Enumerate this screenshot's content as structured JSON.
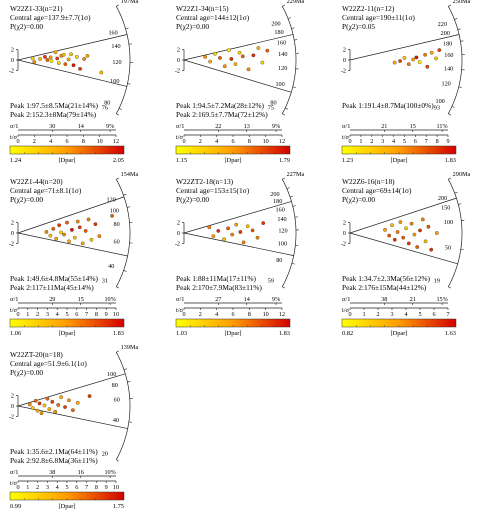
{
  "colorbar_label": "[Dpar]",
  "axis_labels": {
    "precision": "σ/1",
    "tsigma": "t/σ"
  },
  "panels": [
    {
      "title": "W22Z1-33(n=21)",
      "central_age": "Central age=137.9±7.7(1σ)",
      "p_chi2": "P(χ2)=0.00",
      "peaks": [
        "Peak 1:97.5±8.5Ma(21±14%)",
        "Peak 2:152.3±8Ma(79±14%)"
      ],
      "arc_max_label": "197Ma",
      "arc_ticks": [
        {
          "age": 197,
          "label": ""
        },
        {
          "age": 160,
          "label": "160"
        },
        {
          "age": 140,
          "label": "140"
        },
        {
          "age": 120,
          "label": "120"
        },
        {
          "age": 100,
          "label": "100"
        },
        {
          "age": 80,
          "label": "80"
        },
        {
          "age": 76,
          "label": "76"
        }
      ],
      "arc_min": 76,
      "peak_ages": [
        97.5,
        152.3
      ],
      "precision_ticks": [
        "30",
        "14",
        "9%"
      ],
      "x_ticks": [
        "0",
        "2",
        "4",
        "6",
        "8",
        "10",
        "12"
      ],
      "x_max": 12,
      "y_ticks": [
        "2",
        "0",
        "-2"
      ],
      "dpar": {
        "min": "1.24",
        "max": "2.05",
        "vmin": 1.24,
        "vmax": 2.05
      },
      "points": [
        [
          1.8,
          0.3,
          1.4
        ],
        [
          2.0,
          -0.4,
          1.7
        ],
        [
          2.7,
          0.2,
          1.5
        ],
        [
          3.3,
          0.6,
          1.9
        ],
        [
          3.6,
          0.0,
          1.8
        ],
        [
          4.0,
          0.5,
          1.6
        ],
        [
          4.1,
          -0.2,
          1.3
        ],
        [
          4.6,
          1.5,
          1.6
        ],
        [
          4.8,
          0.3,
          1.9
        ],
        [
          5.0,
          -0.6,
          1.4
        ],
        [
          5.3,
          0.8,
          1.7
        ],
        [
          5.6,
          1.0,
          1.5
        ],
        [
          5.8,
          -0.8,
          1.8
        ],
        [
          6.2,
          0.1,
          1.6
        ],
        [
          6.5,
          1.1,
          1.5
        ],
        [
          6.8,
          -1.0,
          2.0
        ],
        [
          7.2,
          0.6,
          1.4
        ],
        [
          7.6,
          -1.7,
          1.9
        ],
        [
          8.1,
          0.2,
          1.7
        ],
        [
          8.5,
          0.8,
          1.6
        ],
        [
          10.2,
          -2.4,
          1.5
        ]
      ]
    },
    {
      "title": "W22Z1-34(n=15)",
      "central_age": "Central age=144±12(1σ)",
      "p_chi2": "P(χ2)=0.00",
      "peaks": [
        "Peak 1:94.5±7.2Ma(28±12%)",
        "Peak 2:169.5±7.7Ma(72±12%)"
      ],
      "arc_max_label": "229Ma",
      "arc_ticks": [
        {
          "age": 229,
          "label": ""
        },
        {
          "age": 200,
          "label": "200"
        },
        {
          "age": 180,
          "label": "180"
        },
        {
          "age": 160,
          "label": "160"
        },
        {
          "age": 140,
          "label": "140"
        },
        {
          "age": 120,
          "label": "120"
        },
        {
          "age": 100,
          "label": "100"
        },
        {
          "age": 80,
          "label": "80"
        },
        {
          "age": 75,
          "label": "75"
        }
      ],
      "arc_min": 75,
      "peak_ages": [
        94.5,
        169.5
      ],
      "precision_ticks": [
        "22",
        "13",
        "9%"
      ],
      "x_ticks": [
        "0",
        "2",
        "4",
        "6",
        "8",
        "10",
        "12"
      ],
      "x_max": 12,
      "y_ticks": [
        "2",
        "0",
        "-2"
      ],
      "dpar": {
        "min": "1.15",
        "max": "1.79",
        "vmin": 1.15,
        "vmax": 1.79
      },
      "points": [
        [
          2.6,
          0.6,
          1.5
        ],
        [
          3.2,
          -0.3,
          1.4
        ],
        [
          3.8,
          1.2,
          1.3
        ],
        [
          4.4,
          0.4,
          1.6
        ],
        [
          5.0,
          -1.2,
          1.5
        ],
        [
          5.5,
          1.9,
          1.2
        ],
        [
          5.8,
          0.2,
          1.7
        ],
        [
          6.3,
          -0.8,
          1.4
        ],
        [
          6.8,
          1.4,
          1.3
        ],
        [
          7.2,
          0.7,
          1.6
        ],
        [
          7.9,
          -1.8,
          1.5
        ],
        [
          8.5,
          0.9,
          1.7
        ],
        [
          9.1,
          2.3,
          1.4
        ],
        [
          9.6,
          -0.5,
          1.3
        ],
        [
          10.2,
          1.8,
          1.6
        ]
      ]
    },
    {
      "title": "W22Z2-11(n=12)",
      "central_age": "Central age=190±11(1σ)",
      "p_chi2": "P(χ2)=0.05",
      "peaks": [
        "Peak 1:191.4±8.7Ma(100±0%)"
      ],
      "arc_max_label": "250Ma",
      "arc_ticks": [
        {
          "age": 250,
          "label": ""
        },
        {
          "age": 220,
          "label": "220"
        },
        {
          "age": 200,
          "label": "200"
        },
        {
          "age": 180,
          "label": "180"
        },
        {
          "age": 160,
          "label": "160"
        },
        {
          "age": 140,
          "label": "140"
        },
        {
          "age": 120,
          "label": "120"
        },
        {
          "age": 100,
          "label": "100"
        },
        {
          "age": 93,
          "label": "93"
        }
      ],
      "arc_min": 93,
      "peak_ages": [
        191.4
      ],
      "precision_ticks": [
        "21",
        "15",
        "11%"
      ],
      "x_ticks": [
        "0",
        "1",
        "2",
        "3",
        "4",
        "5",
        "6",
        "7",
        "8",
        "9"
      ],
      "x_max": 9,
      "y_ticks": [
        "2",
        "0",
        "-2"
      ],
      "dpar": {
        "min": "1.23",
        "max": "1.83",
        "vmin": 1.23,
        "vmax": 1.83
      },
      "points": [
        [
          4.1,
          -0.5,
          1.5
        ],
        [
          4.6,
          -0.2,
          1.7
        ],
        [
          5.0,
          0.4,
          1.4
        ],
        [
          5.4,
          -0.8,
          1.6
        ],
        [
          5.8,
          0.1,
          1.5
        ],
        [
          6.1,
          0.5,
          1.8
        ],
        [
          6.4,
          -0.4,
          1.3
        ],
        [
          6.9,
          1.0,
          1.6
        ],
        [
          7.1,
          -1.3,
          1.7
        ],
        [
          7.5,
          1.4,
          1.5
        ],
        [
          7.9,
          0.3,
          1.4
        ],
        [
          8.2,
          1.9,
          1.7
        ]
      ]
    },
    {
      "title": "W22Z1-44(n=20)",
      "central_age": "Central age=71±8.1(1σ)",
      "p_chi2": "P(χ2)=0.00",
      "peaks": [
        "Peak 1:49.6±4.8Ma(55±14%)",
        "Peak 2:117±11Ma(45±14%)"
      ],
      "arc_max_label": "154Ma",
      "arc_ticks": [
        {
          "age": 154,
          "label": ""
        },
        {
          "age": 120,
          "label": "120"
        },
        {
          "age": 100,
          "label": "100"
        },
        {
          "age": 80,
          "label": "80"
        },
        {
          "age": 60,
          "label": "60"
        },
        {
          "age": 40,
          "label": "40"
        },
        {
          "age": 31,
          "label": "31"
        }
      ],
      "arc_min": 31,
      "peak_ages": [
        49.6,
        117
      ],
      "precision_ticks": [
        "29",
        "15",
        "10%"
      ],
      "x_ticks": [
        "0",
        "1",
        "2",
        "3",
        "4",
        "5",
        "6",
        "7",
        "8",
        "9",
        "10"
      ],
      "x_max": 10,
      "y_ticks": [
        "2",
        "0",
        "-2"
      ],
      "dpar": {
        "min": "1.06",
        "max": "1.83",
        "vmin": 1.06,
        "vmax": 1.83
      },
      "points": [
        [
          2.9,
          0.2,
          1.5
        ],
        [
          3.3,
          -0.5,
          1.3
        ],
        [
          3.6,
          0.8,
          1.6
        ],
        [
          3.9,
          -1.1,
          1.4
        ],
        [
          4.2,
          1.5,
          1.7
        ],
        [
          4.4,
          0.1,
          1.2
        ],
        [
          4.7,
          -0.3,
          1.5
        ],
        [
          5.0,
          2.0,
          1.6
        ],
        [
          5.2,
          -1.6,
          1.4
        ],
        [
          5.5,
          0.6,
          1.8
        ],
        [
          5.8,
          -0.9,
          1.3
        ],
        [
          6.1,
          2.2,
          1.5
        ],
        [
          6.3,
          1.1,
          1.7
        ],
        [
          6.6,
          -2.0,
          1.4
        ],
        [
          6.9,
          0.4,
          1.6
        ],
        [
          7.2,
          2.6,
          1.5
        ],
        [
          7.5,
          -1.3,
          1.3
        ],
        [
          7.9,
          1.7,
          1.7
        ],
        [
          8.3,
          -0.6,
          1.5
        ],
        [
          9.6,
          3.3,
          1.6
        ]
      ]
    },
    {
      "title": "W22ZT2-18(n=13)",
      "central_age": "Central age=153±15(1σ)",
      "p_chi2": "P(χ2)=0.00",
      "peaks": [
        "Peak 1:88±11Ma(17±11%)",
        "Peak 2:170±7.9Ma(83±11%)"
      ],
      "arc_max_label": "227Ma",
      "arc_ticks": [
        {
          "age": 227,
          "label": ""
        },
        {
          "age": 200,
          "label": "200"
        },
        {
          "age": 180,
          "label": "180"
        },
        {
          "age": 160,
          "label": "160"
        },
        {
          "age": 140,
          "label": "140"
        },
        {
          "age": 120,
          "label": "120"
        },
        {
          "age": 100,
          "label": "100"
        },
        {
          "age": 80,
          "label": "80"
        },
        {
          "age": 59,
          "label": "59"
        }
      ],
      "arc_min": 59,
      "peak_ages": [
        88,
        170
      ],
      "precision_ticks": [
        "27",
        "14",
        "9%"
      ],
      "x_ticks": [
        "0",
        "2",
        "4",
        "6",
        "8",
        "10",
        "12"
      ],
      "x_max": 12,
      "y_ticks": [
        "2",
        "0",
        "-2"
      ],
      "dpar": {
        "min": "1.03",
        "max": "1.83",
        "vmin": 1.03,
        "vmax": 1.83
      },
      "points": [
        [
          3.1,
          1.1,
          1.5
        ],
        [
          3.6,
          -0.6,
          1.4
        ],
        [
          4.2,
          0.4,
          1.7
        ],
        [
          4.9,
          -1.2,
          1.3
        ],
        [
          5.4,
          0.9,
          1.6
        ],
        [
          5.9,
          -0.3,
          1.5
        ],
        [
          6.4,
          1.6,
          1.4
        ],
        [
          6.9,
          0.2,
          1.7
        ],
        [
          7.3,
          -1.8,
          1.5
        ],
        [
          7.8,
          1.3,
          1.3
        ],
        [
          8.4,
          0.5,
          1.6
        ],
        [
          9.0,
          -0.9,
          1.5
        ],
        [
          9.7,
          1.9,
          1.7
        ]
      ]
    },
    {
      "title": "W22Z6-16(n=18)",
      "central_age": "Central age=69±14(1σ)",
      "p_chi2": "P(χ2)=0.00",
      "peaks": [
        "Peak 1:34.7±2.3Ma(56±12%)",
        "Peak 2:176±15Ma(44±12%)"
      ],
      "arc_max_label": "290Ma",
      "arc_ticks": [
        {
          "age": 290,
          "label": ""
        },
        {
          "age": 200,
          "label": "200"
        },
        {
          "age": 150,
          "label": "150"
        },
        {
          "age": 100,
          "label": "100"
        },
        {
          "age": 50,
          "label": "50"
        },
        {
          "age": 19,
          "label": "19"
        }
      ],
      "arc_min": 19,
      "peak_ages": [
        34.7,
        176
      ],
      "precision_ticks": [
        "38",
        "21",
        "15%"
      ],
      "x_ticks": [
        "0",
        "1",
        "2",
        "3",
        "4",
        "5",
        "6",
        "7"
      ],
      "x_max": 7,
      "y_ticks": [
        "2",
        "0",
        "-2"
      ],
      "dpar": {
        "min": "0.82",
        "max": "1.63",
        "vmin": 0.82,
        "vmax": 1.63
      },
      "points": [
        [
          2.5,
          0.6,
          1.2
        ],
        [
          2.8,
          -0.5,
          1.4
        ],
        [
          3.0,
          1.5,
          1.1
        ],
        [
          3.2,
          -1.3,
          1.5
        ],
        [
          3.4,
          0.2,
          1.3
        ],
        [
          3.6,
          2.1,
          1.2
        ],
        [
          3.8,
          -0.9,
          1.4
        ],
        [
          4.0,
          0.9,
          1.0
        ],
        [
          4.2,
          -2.0,
          1.5
        ],
        [
          4.4,
          1.8,
          1.3
        ],
        [
          4.6,
          -0.3,
          1.2
        ],
        [
          4.8,
          -2.7,
          1.4
        ],
        [
          5.0,
          0.5,
          1.5
        ],
        [
          5.2,
          2.6,
          1.3
        ],
        [
          5.4,
          -1.6,
          1.1
        ],
        [
          5.6,
          1.2,
          1.4
        ],
        [
          5.8,
          -3.2,
          1.5
        ],
        [
          6.2,
          0.0,
          1.2
        ]
      ]
    },
    {
      "title": "W22ZT-20(n=18)",
      "central_age": "Central age=51.9±6.1(1σ)",
      "p_chi2": "P(χ2)=0.00",
      "peaks": [
        "Peak 1:35.6±2.1Ma(64±11%)",
        "Peak 2:92.8±6.8Ma(36±11%)"
      ],
      "arc_max_label": "139Ma",
      "arc_ticks": [
        {
          "age": 139,
          "label": ""
        },
        {
          "age": 100,
          "label": "100"
        },
        {
          "age": 80,
          "label": "80"
        },
        {
          "age": 60,
          "label": "60"
        },
        {
          "age": 40,
          "label": "40"
        },
        {
          "age": 20,
          "label": "20"
        }
      ],
      "arc_min": 20,
      "peak_ages": [
        35.6,
        92.8
      ],
      "precision_ticks": [
        "38",
        "16",
        "10%"
      ],
      "x_ticks": [
        "0",
        "1",
        "2",
        "3",
        "4",
        "5",
        "6",
        "7",
        "8",
        "9",
        "10"
      ],
      "x_max": 10,
      "y_ticks": [
        "2",
        "0",
        "-2"
      ],
      "dpar": {
        "min": "0.99",
        "max": "1.75",
        "vmin": 0.99,
        "vmax": 1.75
      },
      "points": [
        [
          1.2,
          0.3,
          1.4
        ],
        [
          1.5,
          -0.4,
          1.2
        ],
        [
          1.8,
          1.0,
          1.5
        ],
        [
          2.0,
          -0.9,
          1.3
        ],
        [
          2.2,
          0.5,
          1.6
        ],
        [
          2.4,
          -1.4,
          1.4
        ],
        [
          2.7,
          0.1,
          1.2
        ],
        [
          3.0,
          1.4,
          1.5
        ],
        [
          3.2,
          -0.6,
          1.3
        ],
        [
          3.5,
          0.8,
          1.6
        ],
        [
          3.8,
          -1.1,
          1.4
        ],
        [
          4.1,
          0.2,
          1.5
        ],
        [
          4.4,
          1.7,
          1.3
        ],
        [
          4.8,
          -0.2,
          1.6
        ],
        [
          5.2,
          1.1,
          1.4
        ],
        [
          5.6,
          -0.8,
          1.5
        ],
        [
          6.1,
          0.6,
          1.3
        ],
        [
          7.3,
          1.9,
          1.6
        ]
      ]
    }
  ]
}
